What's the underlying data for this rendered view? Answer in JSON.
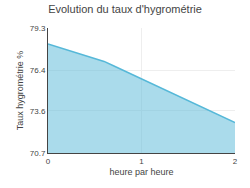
{
  "chart_data": {
    "type": "area",
    "title": "Evolution du taux d'hygrométrie",
    "xlabel": "heure par heure",
    "ylabel": "Taux hygrométrie %",
    "x": [
      0,
      0.1,
      0.2,
      0.3,
      0.4,
      0.5,
      0.6,
      0.7,
      0.8,
      0.9,
      1.0,
      1.1,
      1.2,
      1.3,
      1.4,
      1.5,
      1.6,
      1.7,
      1.8,
      1.9,
      2.0
    ],
    "values": [
      78.2,
      78.0,
      77.8,
      77.6,
      77.4,
      77.2,
      77.0,
      76.7,
      76.4,
      76.1,
      75.8,
      75.5,
      75.2,
      74.9,
      74.6,
      74.3,
      74.0,
      73.7,
      73.4,
      73.1,
      72.8
    ],
    "color": "#56b8d8",
    "xlim": [
      0,
      2
    ],
    "ylim": [
      70.7,
      79.3
    ],
    "xticks": [
      0,
      1,
      2
    ],
    "yticks": [
      70.7,
      73.6,
      76.4,
      79.3
    ],
    "grid": true
  }
}
